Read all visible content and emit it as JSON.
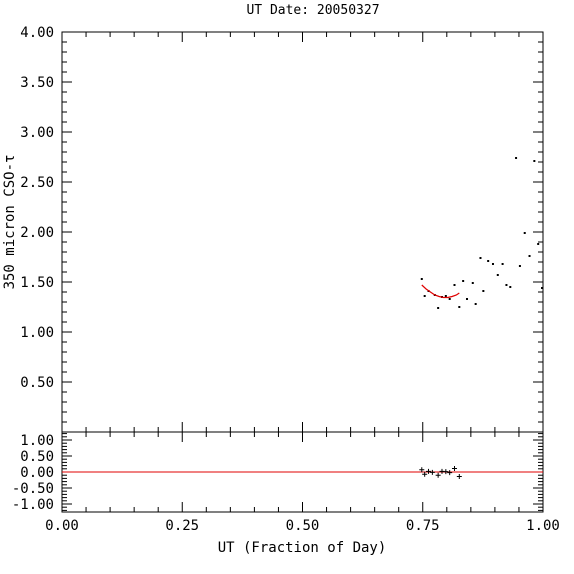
{
  "chart_data": {
    "type": "scatter",
    "title": "UT Date: 20050327",
    "xlabel": "UT (Fraction of Day)",
    "ylabel": "350 micron CSO-τ",
    "colors": {
      "points": "#000000",
      "fit": "#e00000",
      "axes": "#000000"
    },
    "main_panel": {
      "xlim": [
        0.0,
        1.0
      ],
      "ylim": [
        0.0,
        4.0
      ],
      "x_ticks": [
        "0.00",
        "0.25",
        "0.50",
        "0.75",
        "1.00"
      ],
      "y_ticks": [
        "0.50",
        "1.00",
        "1.50",
        "2.00",
        "2.50",
        "3.00",
        "3.50",
        "4.00"
      ],
      "points": [
        {
          "x": 0.748,
          "y": 1.53
        },
        {
          "x": 0.754,
          "y": 1.36
        },
        {
          "x": 0.762,
          "y": 1.41
        },
        {
          "x": 0.775,
          "y": 1.37
        },
        {
          "x": 0.782,
          "y": 1.24
        },
        {
          "x": 0.79,
          "y": 1.35
        },
        {
          "x": 0.798,
          "y": 1.36
        },
        {
          "x": 0.806,
          "y": 1.33
        },
        {
          "x": 0.816,
          "y": 1.47
        },
        {
          "x": 0.826,
          "y": 1.25
        },
        {
          "x": 0.834,
          "y": 1.51
        },
        {
          "x": 0.842,
          "y": 1.33
        },
        {
          "x": 0.854,
          "y": 1.49
        },
        {
          "x": 0.86,
          "y": 1.28
        },
        {
          "x": 0.87,
          "y": 1.74
        },
        {
          "x": 0.876,
          "y": 1.41
        },
        {
          "x": 0.886,
          "y": 1.71
        },
        {
          "x": 0.896,
          "y": 1.68
        },
        {
          "x": 0.906,
          "y": 1.57
        },
        {
          "x": 0.916,
          "y": 1.68
        },
        {
          "x": 0.924,
          "y": 1.47
        },
        {
          "x": 0.932,
          "y": 1.45
        },
        {
          "x": 0.944,
          "y": 2.74
        },
        {
          "x": 0.952,
          "y": 1.66
        },
        {
          "x": 0.962,
          "y": 1.99
        },
        {
          "x": 0.972,
          "y": 1.76
        },
        {
          "x": 0.982,
          "y": 2.71
        },
        {
          "x": 0.99,
          "y": 1.88
        },
        {
          "x": 0.998,
          "y": 1.44
        }
      ],
      "fit_curve": [
        {
          "x": 0.748,
          "y": 1.47
        },
        {
          "x": 0.757,
          "y": 1.43
        },
        {
          "x": 0.766,
          "y": 1.4
        },
        {
          "x": 0.775,
          "y": 1.37
        },
        {
          "x": 0.784,
          "y": 1.355
        },
        {
          "x": 0.793,
          "y": 1.345
        },
        {
          "x": 0.802,
          "y": 1.345
        },
        {
          "x": 0.811,
          "y": 1.355
        },
        {
          "x": 0.82,
          "y": 1.37
        },
        {
          "x": 0.826,
          "y": 1.39
        }
      ]
    },
    "residual_panel": {
      "xlim": [
        0.0,
        1.0
      ],
      "ylim": [
        -1.25,
        1.25
      ],
      "y_ticks": [
        "1.00",
        "0.50",
        "0.00",
        "-0.50",
        "-1.00"
      ],
      "zero_line": 0.0,
      "points": [
        {
          "x": 0.748,
          "y": 0.07
        },
        {
          "x": 0.754,
          "y": -0.07
        },
        {
          "x": 0.762,
          "y": 0.02
        },
        {
          "x": 0.77,
          "y": -0.01
        },
        {
          "x": 0.782,
          "y": -0.1
        },
        {
          "x": 0.79,
          "y": 0.02
        },
        {
          "x": 0.798,
          "y": 0.01
        },
        {
          "x": 0.806,
          "y": -0.02
        },
        {
          "x": 0.816,
          "y": 0.11
        },
        {
          "x": 0.826,
          "y": -0.14
        }
      ]
    }
  }
}
